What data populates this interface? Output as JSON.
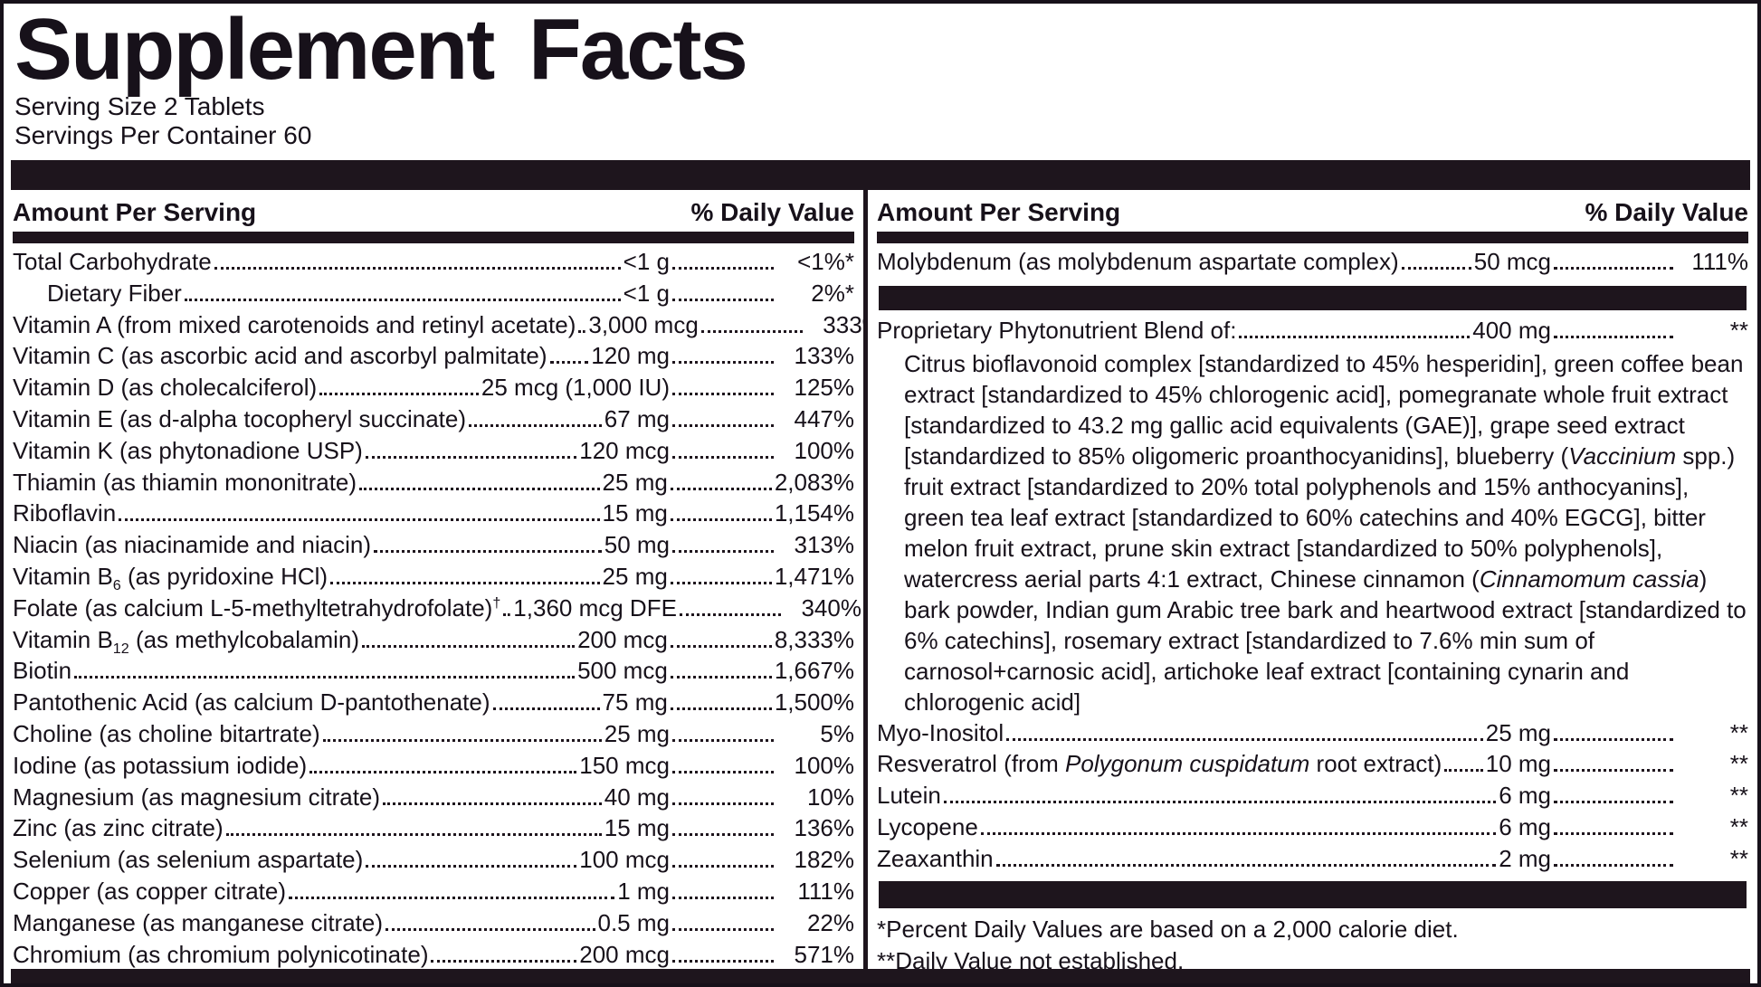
{
  "title": "Supplement Facts",
  "serving_size": "Serving Size 2 Tablets",
  "servings_per_container": "Servings Per Container 60",
  "column_header": {
    "amount": "Amount Per Serving",
    "dv": "% Daily Value"
  },
  "colors": {
    "bar": "#1e151d",
    "text": "#17111a",
    "background": "#ffffff"
  },
  "left_rows": [
    {
      "name": "Total Carbohydrate ",
      "amount": "<1 g",
      "dv": "<1%*"
    },
    {
      "name": "Dietary Fiber",
      "amount": "<1 g",
      "dv": "2%*",
      "indent": true
    },
    {
      "name": "Vitamin A (from mixed carotenoids and retinyl acetate)",
      "amount": "3,000 mcg",
      "dv": "333%"
    },
    {
      "name": "Vitamin C (as ascorbic acid and ascorbyl palmitate)",
      "amount": "120 mg",
      "dv": "133%"
    },
    {
      "name": "Vitamin D (as cholecalciferol)",
      "amount": "25 mcg (1,000 IU)",
      "dv": "125%"
    },
    {
      "name": "Vitamin E (as d-alpha tocopheryl succinate)",
      "amount": "67 mg",
      "dv": "447%"
    },
    {
      "name": "Vitamin K (as phytonadione USP)",
      "amount": "120 mcg",
      "dv": "100%"
    },
    {
      "name": "Thiamin (as thiamin mononitrate) ",
      "amount": "25 mg",
      "dv": "2,083%"
    },
    {
      "name": "Riboflavin",
      "amount": "15 mg",
      "dv": "1,154%"
    },
    {
      "name": "Niacin (as niacinamide and niacin)",
      "amount": "50 mg",
      "dv": "313%"
    },
    {
      "parts": [
        {
          "t": "Vitamin B"
        },
        {
          "t": "6",
          "sub": true
        },
        {
          "t": " (as pyridoxine HCl)"
        }
      ],
      "amount": "25 mg",
      "dv": "1,471%"
    },
    {
      "parts": [
        {
          "t": "Folate (as calcium L-5-methyltetrahydrofolate)"
        },
        {
          "t": "†",
          "sup": true
        }
      ],
      "amount": "1,360 mcg DFE",
      "dv": "340%"
    },
    {
      "parts": [
        {
          "t": "Vitamin B"
        },
        {
          "t": "12",
          "sub": true
        },
        {
          "t": " (as methylcobalamin)"
        }
      ],
      "amount": "200 mcg",
      "dv": "8,333%"
    },
    {
      "name": "Biotin",
      "amount": "500 mcg",
      "dv": "1,667%"
    },
    {
      "name": "Pantothenic Acid (as calcium D-pantothenate)",
      "amount": "75 mg",
      "dv": "1,500%"
    },
    {
      "name": "Choline (as choline bitartrate) ",
      "amount": "25 mg",
      "dv": "5%"
    },
    {
      "name": "Iodine (as potassium iodide) ",
      "amount": "150 mcg",
      "dv": "100%"
    },
    {
      "name": "Magnesium (as magnesium citrate)",
      "amount": "40 mg",
      "dv": "10%"
    },
    {
      "name": "Zinc (as zinc citrate) ",
      "amount": "15 mg",
      "dv": "136%"
    },
    {
      "name": "Selenium (as selenium aspartate)",
      "amount": "100 mcg",
      "dv": "182%"
    },
    {
      "name": "Copper (as copper citrate)",
      "amount": "1 mg",
      "dv": "111%"
    },
    {
      "name": "Manganese (as manganese citrate) ",
      "amount": "0.5 mg",
      "dv": "22%"
    },
    {
      "name": "Chromium (as chromium polynicotinate)",
      "amount": "200 mcg",
      "dv": "571%"
    }
  ],
  "right_top_rows": [
    {
      "name": "Molybdenum (as molybdenum aspartate complex) ",
      "amount": "50 mcg",
      "dv": "111%"
    }
  ],
  "blend": {
    "heading": "Proprietary Phytonutrient Blend of: ",
    "amount": "400 mg",
    "dv": "**",
    "description_parts": [
      {
        "t": "Citrus bioflavonoid complex [standardized to 45% hesperidin], green coffee bean extract [standardized to 45% chlorogenic acid], pomegranate whole fruit extract [standardized to 43.2 mg gallic acid equivalents (GAE)], grape seed extract [standardized to 85% oligomeric proanthocyanidins], blueberry ("
      },
      {
        "t": "Vaccinium",
        "i": true
      },
      {
        "t": " spp.) fruit extract [standardized to 20% total polyphenols and 15% anthocyanins], green tea leaf extract [standardized to 60% catechins and 40% EGCG], bitter melon fruit extract, prune skin extract [standardized to 50% polyphenols], watercress aerial parts 4:1 extract, Chinese cinnamon ("
      },
      {
        "t": "Cinnamomum cassia",
        "i": true
      },
      {
        "t": ") bark powder, Indian gum Arabic tree bark and heartwood extract [standardized to 6% catechins], rosemary extract [standardized to 7.6% min sum of carnosol+carnosic acid], artichoke leaf extract [containing cynarin and chlorogenic acid]"
      }
    ]
  },
  "right_bottom_rows": [
    {
      "name": "Myo-Inositol",
      "amount": "25 mg",
      "dv": "**"
    },
    {
      "parts": [
        {
          "t": "Resveratrol (from "
        },
        {
          "t": "Polygonum cuspidatum",
          "i": true
        },
        {
          "t": " root extract)"
        }
      ],
      "amount": "10 mg",
      "dv": "**"
    },
    {
      "name": "Lutein ",
      "amount": "6 mg",
      "dv": "**"
    },
    {
      "name": "Lycopene",
      "amount": "6 mg",
      "dv": "**"
    },
    {
      "name": "Zeaxanthin",
      "amount": "2 mg",
      "dv": "**"
    }
  ],
  "footnotes": [
    "*Percent Daily Values are based on a 2,000 calorie diet.",
    "**Daily Value not established."
  ]
}
